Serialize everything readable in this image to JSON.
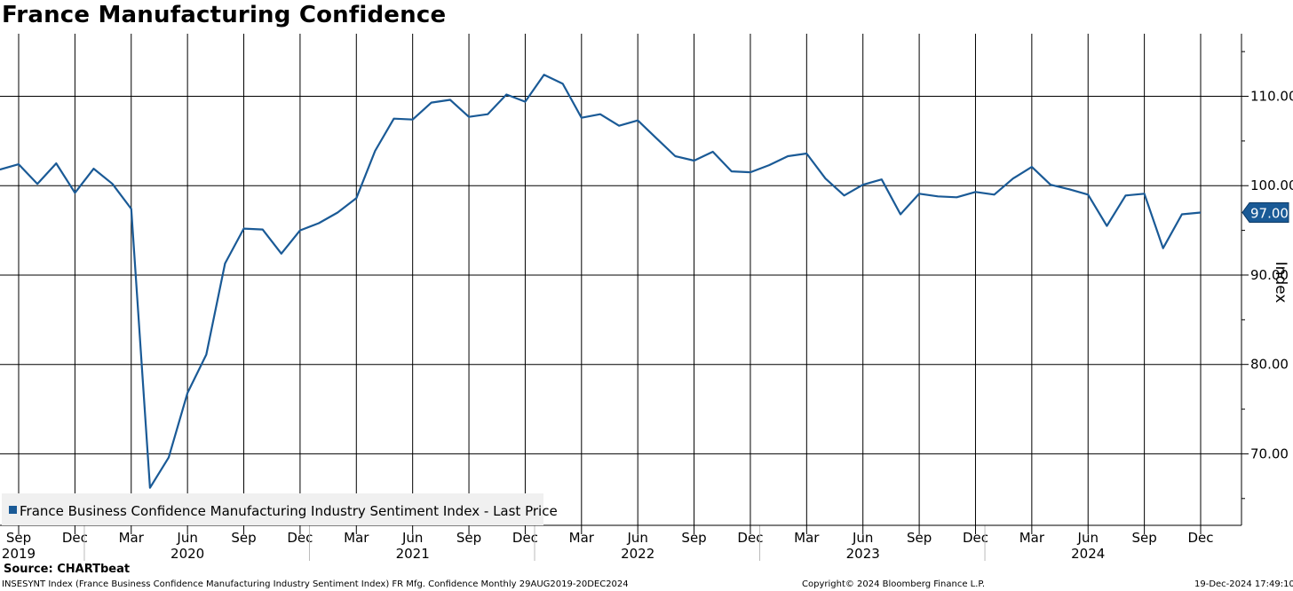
{
  "title": "France Manufacturing Confidence",
  "source": "Source: CHARTbeat",
  "footer": {
    "left": "INSESYNT Index (France Business Confidence Manufacturing Industry Sentiment Index) FR Mfg. Confidence  Monthly 29AUG2019-20DEC2024",
    "center": "Copyright© 2024 Bloomberg Finance L.P.",
    "right": "19-Dec-2024 17:49:10"
  },
  "chart_data": {
    "type": "line",
    "title": "France Manufacturing Confidence",
    "ylabel": "Index",
    "ylim": [
      62.0,
      117.0
    ],
    "yticks": [
      70,
      80,
      90,
      100,
      110
    ],
    "ytick_labels": [
      "70.00",
      "80.00",
      "90.00",
      "100.00",
      "110.00"
    ],
    "grid": true,
    "legend_placement": "bottom-left",
    "last_value_label": "97.00",
    "colors": {
      "series": "#1a5a96",
      "grid": "#000000",
      "legend_bg": "#f0f0f0"
    },
    "x_month_ticks": [
      {
        "month": "2019-09",
        "label": "Sep"
      },
      {
        "month": "2019-12",
        "label": "Dec"
      },
      {
        "month": "2020-03",
        "label": "Mar"
      },
      {
        "month": "2020-06",
        "label": "Jun"
      },
      {
        "month": "2020-09",
        "label": "Sep"
      },
      {
        "month": "2020-12",
        "label": "Dec"
      },
      {
        "month": "2021-03",
        "label": "Mar"
      },
      {
        "month": "2021-06",
        "label": "Jun"
      },
      {
        "month": "2021-09",
        "label": "Sep"
      },
      {
        "month": "2021-12",
        "label": "Dec"
      },
      {
        "month": "2022-03",
        "label": "Mar"
      },
      {
        "month": "2022-06",
        "label": "Jun"
      },
      {
        "month": "2022-09",
        "label": "Sep"
      },
      {
        "month": "2022-12",
        "label": "Dec"
      },
      {
        "month": "2023-03",
        "label": "Mar"
      },
      {
        "month": "2023-06",
        "label": "Jun"
      },
      {
        "month": "2023-09",
        "label": "Sep"
      },
      {
        "month": "2023-12",
        "label": "Dec"
      },
      {
        "month": "2024-03",
        "label": "Mar"
      },
      {
        "month": "2024-06",
        "label": "Jun"
      },
      {
        "month": "2024-09",
        "label": "Sep"
      },
      {
        "month": "2024-12",
        "label": "Dec"
      }
    ],
    "x_year_labels": [
      {
        "month": "2019-09",
        "label": "2019"
      },
      {
        "month": "2020-06",
        "label": "2020"
      },
      {
        "month": "2021-06",
        "label": "2021"
      },
      {
        "month": "2022-06",
        "label": "2022"
      },
      {
        "month": "2023-06",
        "label": "2023"
      },
      {
        "month": "2024-06",
        "label": "2024"
      }
    ],
    "x_range": [
      "2019-08",
      "2024-12"
    ],
    "series": [
      {
        "name": "France Business Confidence Manufacturing Industry Sentiment Index - Last Price",
        "x": [
          "2019-08",
          "2019-09",
          "2019-10",
          "2019-11",
          "2019-12",
          "2020-01",
          "2020-02",
          "2020-03",
          "2020-04",
          "2020-05",
          "2020-06",
          "2020-07",
          "2020-08",
          "2020-09",
          "2020-10",
          "2020-11",
          "2020-12",
          "2021-01",
          "2021-02",
          "2021-03",
          "2021-04",
          "2021-05",
          "2021-06",
          "2021-07",
          "2021-08",
          "2021-09",
          "2021-10",
          "2021-11",
          "2021-12",
          "2022-01",
          "2022-02",
          "2022-03",
          "2022-04",
          "2022-05",
          "2022-06",
          "2022-07",
          "2022-08",
          "2022-09",
          "2022-10",
          "2022-11",
          "2022-12",
          "2023-01",
          "2023-02",
          "2023-03",
          "2023-04",
          "2023-05",
          "2023-06",
          "2023-07",
          "2023-08",
          "2023-09",
          "2023-10",
          "2023-11",
          "2023-12",
          "2024-01",
          "2024-02",
          "2024-03",
          "2024-04",
          "2024-05",
          "2024-06",
          "2024-07",
          "2024-08",
          "2024-09",
          "2024-10",
          "2024-11",
          "2024-12"
        ],
        "values": [
          101.8,
          102.4,
          100.2,
          102.5,
          99.2,
          101.9,
          100.2,
          97.4,
          66.2,
          69.6,
          76.8,
          81.1,
          91.3,
          95.2,
          95.1,
          92.4,
          95.0,
          95.8,
          97.0,
          98.6,
          103.9,
          107.5,
          107.4,
          109.3,
          109.6,
          107.7,
          108.0,
          110.2,
          109.4,
          112.4,
          111.4,
          107.6,
          108.0,
          106.7,
          107.3,
          105.3,
          103.3,
          102.8,
          103.8,
          101.6,
          101.5,
          102.3,
          103.3,
          103.6,
          100.8,
          98.9,
          100.1,
          100.7,
          96.8,
          99.1,
          98.8,
          98.7,
          99.3,
          99.0,
          100.8,
          102.1,
          100.1,
          99.6,
          99.0,
          95.5,
          98.9,
          99.1,
          93.0,
          96.8,
          97.0
        ]
      }
    ]
  }
}
